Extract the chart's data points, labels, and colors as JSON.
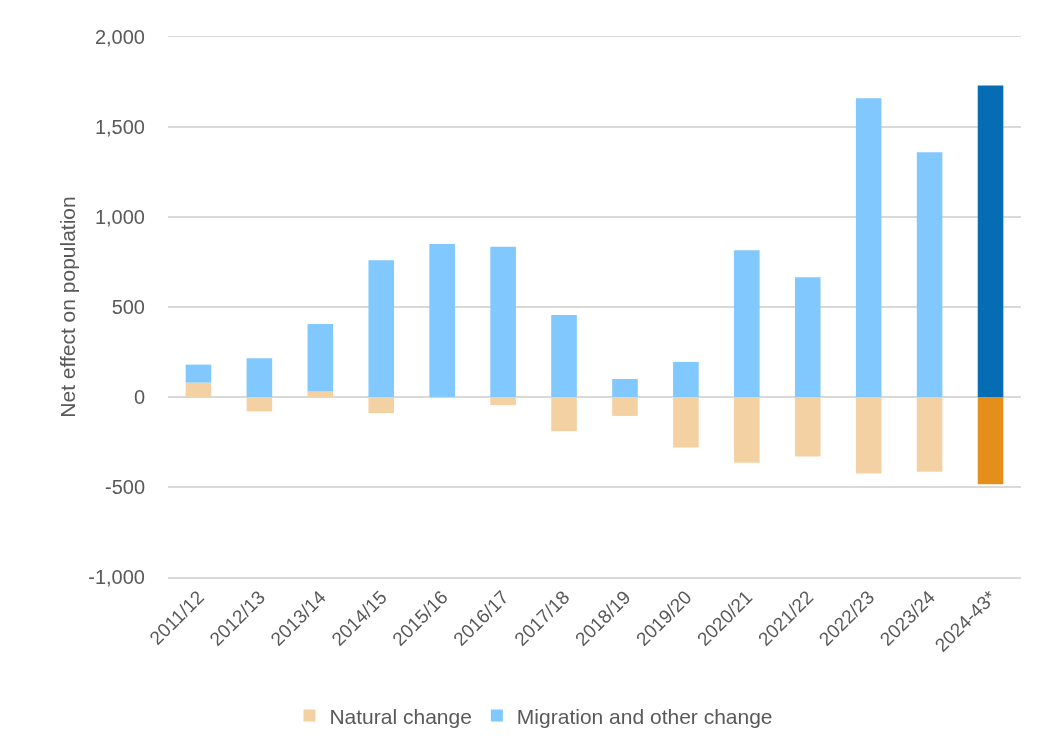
{
  "chart_data": {
    "type": "bar",
    "stacked": true,
    "ylabel": "Net effect on population",
    "categories": [
      "2011/12",
      "2012/13",
      "2013/14",
      "2014/15",
      "2015/16",
      "2016/17",
      "2017/18",
      "2018/19",
      "2019/20",
      "2020/21",
      "2021/22",
      "2022/23",
      "2023/24",
      "2024-43*"
    ],
    "series": [
      {
        "name": "Natural change",
        "values": [
          80,
          -80,
          30,
          -90,
          0,
          -45,
          -190,
          -105,
          -280,
          -365,
          -330,
          -425,
          -415,
          -485
        ],
        "colors": [
          "#f4d1a3",
          "#f4d1a3",
          "#f4d1a3",
          "#f4d1a3",
          "#f4d1a3",
          "#f4d1a3",
          "#f4d1a3",
          "#f4d1a3",
          "#f4d1a3",
          "#f4d1a3",
          "#f4d1a3",
          "#f4d1a3",
          "#f4d1a3",
          "#e48f1c"
        ]
      },
      {
        "name": "Migration and other change",
        "values": [
          100,
          215,
          375,
          760,
          850,
          835,
          455,
          100,
          195,
          815,
          665,
          1660,
          1360,
          1730
        ],
        "colors": [
          "#80c8fd",
          "#80c8fd",
          "#80c8fd",
          "#80c8fd",
          "#80c8fd",
          "#80c8fd",
          "#80c8fd",
          "#80c8fd",
          "#80c8fd",
          "#80c8fd",
          "#80c8fd",
          "#80c8fd",
          "#80c8fd",
          "#066db5"
        ]
      }
    ],
    "ylim": [
      -1000,
      2000
    ],
    "yticks": [
      {
        "value": -1000,
        "label": "-1,000"
      },
      -500,
      0,
      500,
      {
        "value": 1000,
        "label": "1,000"
      },
      {
        "value": 1500,
        "label": "1,500"
      },
      {
        "value": 2000,
        "label": "2,000"
      }
    ],
    "grid": "y",
    "legend": "bottom"
  }
}
